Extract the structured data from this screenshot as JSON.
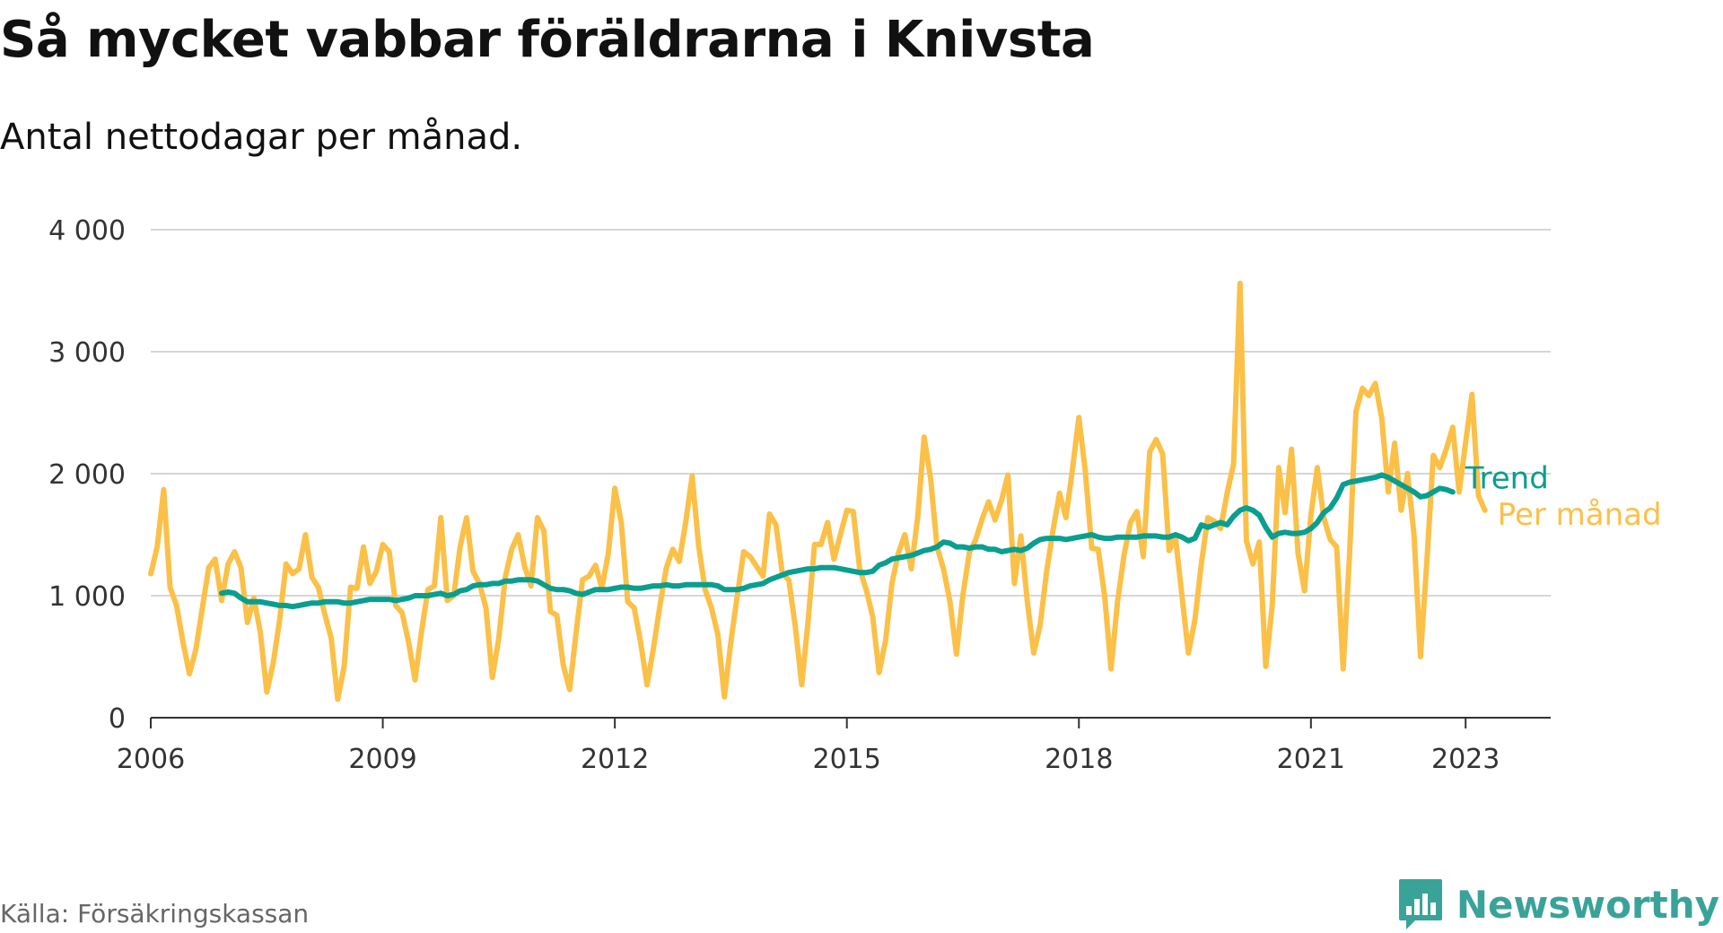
{
  "title": "Så mycket vabbar föräldrarna i Knivsta",
  "subtitle": "Antal nettodagar per månad.",
  "source": "Källa: Försäkringskassan",
  "brand": "Newsworthy",
  "chart_data": {
    "type": "line",
    "title": "Så mycket vabbar föräldrarna i Knivsta",
    "subtitle": "Antal nettodagar per månad.",
    "xlabel": "",
    "ylabel": "",
    "xlim": [
      2006.0,
      2024.1
    ],
    "ylim": [
      0,
      4000
    ],
    "grid": true,
    "legend": "inline-right",
    "x_ticks": [
      2006,
      2009,
      2012,
      2015,
      2018,
      2021,
      2023
    ],
    "x_tick_labels": [
      "2006",
      "2009",
      "2012",
      "2015",
      "2018",
      "2021",
      "2023"
    ],
    "y_ticks": [
      0,
      1000,
      2000,
      3000,
      4000
    ],
    "y_tick_labels": [
      "0",
      "1 000",
      "2 000",
      "3 000",
      "4 000"
    ],
    "x_start": 2006.0,
    "x_step": 0.08333,
    "series": [
      {
        "name": "Per månad",
        "color": "#fbc048",
        "start_index": 0,
        "values": [
          1180,
          1400,
          1870,
          1070,
          920,
          620,
          360,
          560,
          900,
          1230,
          1300,
          960,
          1260,
          1360,
          1230,
          780,
          980,
          700,
          210,
          450,
          800,
          1260,
          1180,
          1220,
          1500,
          1150,
          1070,
          850,
          650,
          150,
          420,
          1070,
          1060,
          1400,
          1100,
          1200,
          1420,
          1360,
          920,
          860,
          620,
          310,
          700,
          1050,
          1080,
          1640,
          960,
          1000,
          1400,
          1640,
          1200,
          1100,
          900,
          330,
          650,
          1150,
          1380,
          1500,
          1240,
          1080,
          1640,
          1530,
          870,
          840,
          430,
          230,
          700,
          1130,
          1160,
          1250,
          1060,
          1350,
          1880,
          1600,
          950,
          900,
          620,
          270,
          570,
          920,
          1230,
          1380,
          1280,
          1600,
          1980,
          1410,
          1050,
          900,
          680,
          170,
          620,
          1000,
          1360,
          1320,
          1240,
          1160,
          1670,
          1580,
          1180,
          1130,
          750,
          270,
          800,
          1420,
          1420,
          1600,
          1300,
          1500,
          1700,
          1690,
          1220,
          1050,
          830,
          370,
          630,
          1100,
          1350,
          1500,
          1220,
          1650,
          2300,
          1960,
          1400,
          1220,
          950,
          520,
          1000,
          1350,
          1460,
          1630,
          1770,
          1620,
          1780,
          1990,
          1100,
          1490,
          950,
          530,
          760,
          1200,
          1540,
          1840,
          1640,
          2030,
          2460,
          2020,
          1390,
          1380,
          1000,
          400,
          950,
          1330,
          1600,
          1690,
          1320,
          2180,
          2280,
          2160,
          1370,
          1480,
          1000,
          530,
          800,
          1260,
          1640,
          1610,
          1550,
          1840,
          2080,
          3560,
          1450,
          1260,
          1440,
          420,
          920,
          2050,
          1680,
          2200,
          1350,
          1040,
          1660,
          2050,
          1640,
          1460,
          1400,
          400,
          1340,
          2510,
          2700,
          2640,
          2740,
          2450,
          1850,
          2250,
          1700,
          2000,
          1500,
          500,
          1280,
          2150,
          2050,
          2200,
          2380,
          1850,
          2250,
          2650,
          1820,
          1700
        ]
      },
      {
        "name": "Trend",
        "color": "#0a9e8f",
        "start_index": 11,
        "values": [
          1020,
          1030,
          1020,
          980,
          950,
          950,
          950,
          940,
          930,
          920,
          920,
          910,
          920,
          930,
          940,
          940,
          950,
          950,
          950,
          940,
          940,
          950,
          960,
          970,
          970,
          970,
          970,
          960,
          970,
          980,
          1000,
          1000,
          1000,
          1010,
          1020,
          1000,
          1010,
          1040,
          1050,
          1080,
          1090,
          1090,
          1100,
          1100,
          1120,
          1120,
          1130,
          1130,
          1130,
          1120,
          1090,
          1060,
          1050,
          1050,
          1040,
          1020,
          1010,
          1030,
          1050,
          1050,
          1050,
          1060,
          1070,
          1070,
          1060,
          1060,
          1070,
          1080,
          1080,
          1090,
          1080,
          1080,
          1090,
          1090,
          1090,
          1090,
          1090,
          1080,
          1050,
          1050,
          1050,
          1060,
          1080,
          1090,
          1100,
          1130,
          1150,
          1170,
          1190,
          1200,
          1210,
          1220,
          1220,
          1230,
          1230,
          1230,
          1220,
          1210,
          1200,
          1190,
          1190,
          1200,
          1250,
          1270,
          1300,
          1310,
          1320,
          1330,
          1350,
          1370,
          1380,
          1400,
          1440,
          1430,
          1400,
          1400,
          1390,
          1400,
          1400,
          1380,
          1380,
          1360,
          1370,
          1380,
          1370,
          1390,
          1430,
          1460,
          1470,
          1470,
          1470,
          1460,
          1470,
          1480,
          1490,
          1500,
          1480,
          1470,
          1470,
          1480,
          1480,
          1480,
          1480,
          1490,
          1490,
          1490,
          1480,
          1480,
          1500,
          1480,
          1450,
          1470,
          1580,
          1560,
          1580,
          1600,
          1580,
          1650,
          1700,
          1720,
          1700,
          1660,
          1560,
          1480,
          1510,
          1520,
          1510,
          1510,
          1520,
          1550,
          1600,
          1680,
          1720,
          1800,
          1910,
          1930,
          1940,
          1950,
          1960,
          1970,
          1990,
          1970,
          1940,
          1910,
          1880,
          1850,
          1810,
          1820,
          1850,
          1880,
          1870,
          1850
        ]
      }
    ]
  }
}
